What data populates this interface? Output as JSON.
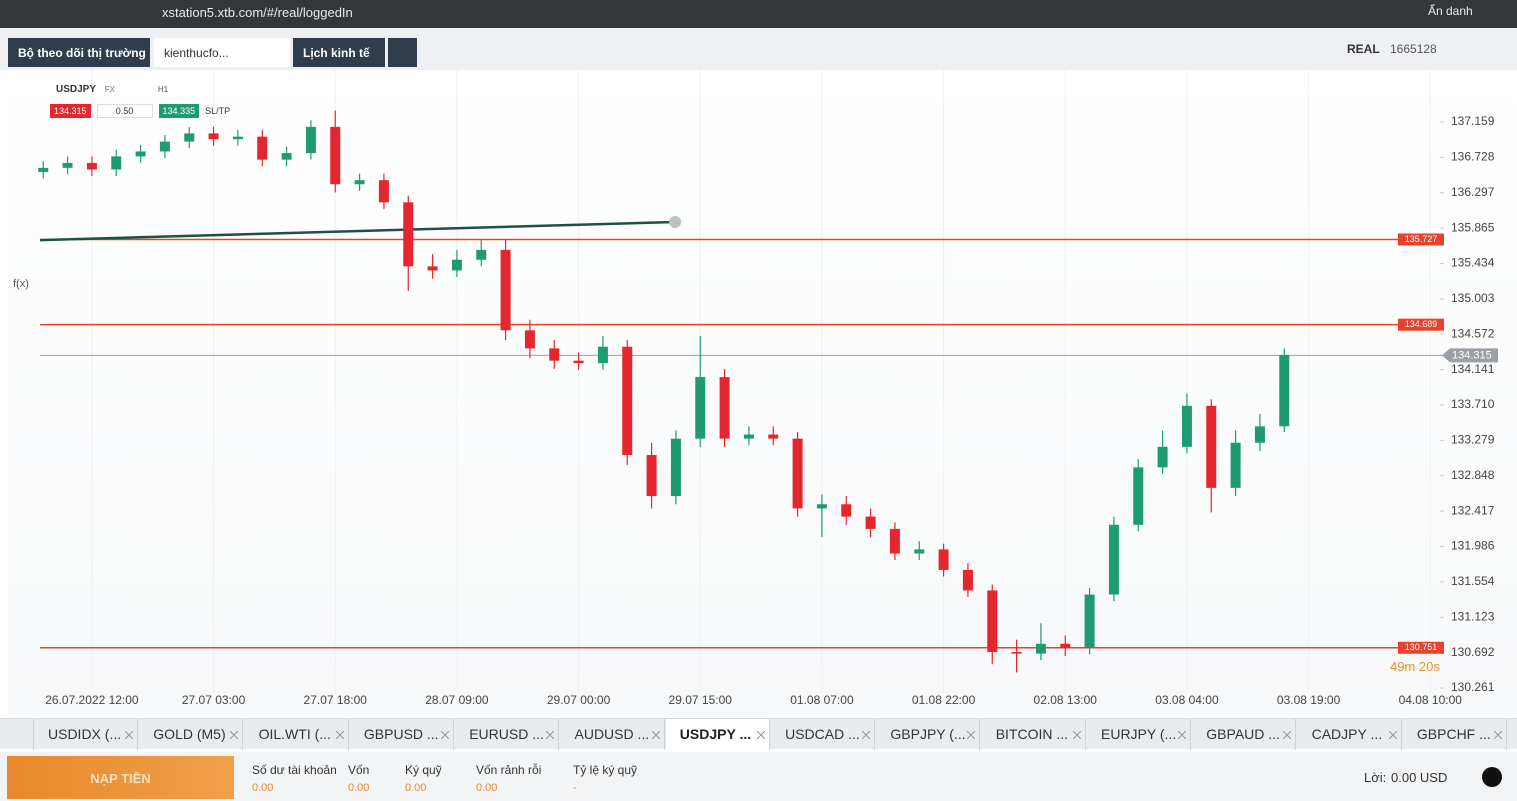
{
  "browser": {
    "url": "xstation5.xtb.com/#/real/loggedIn",
    "profile": "Ẩn danh"
  },
  "top_tabs": [
    "Bộ theo dõi thị trường",
    "kienthucfo...",
    "Lịch kinh tế"
  ],
  "account": {
    "mode": "REAL",
    "number": "1665128"
  },
  "instrument": {
    "symbol": "USDJPY",
    "kind": "FX",
    "interval": "H1",
    "sell": "134.315",
    "spread": "0.50",
    "buy": "134.335",
    "sltp": "SL/TP"
  },
  "toolbar": {
    "fx": "f(x)"
  },
  "chart_data": {
    "type": "candlestick",
    "xlim": [
      -6.4,
      166.2
    ],
    "xticks": [
      {
        "value": 0,
        "label": "26.07.2022 12:00"
      },
      {
        "value": 15,
        "label": "27.07 03:00"
      },
      {
        "value": 30,
        "label": "27.07 18:00"
      },
      {
        "value": 45,
        "label": "28.07 09:00"
      },
      {
        "value": 60,
        "label": "29.07 00:00"
      },
      {
        "value": 75,
        "label": "29.07 15:00"
      },
      {
        "value": 90,
        "label": "01.08 07:00"
      },
      {
        "value": 105,
        "label": "01.08 22:00"
      },
      {
        "value": 120,
        "label": "02.08 13:00"
      },
      {
        "value": 135,
        "label": "03.08 04:00"
      },
      {
        "value": 150,
        "label": "03.08 19:00"
      },
      {
        "value": 165,
        "label": "04.08 10:00"
      }
    ],
    "ylim": [
      130.2,
      137.7
    ],
    "yticks": [
      137.159,
      136.728,
      136.297,
      135.865,
      135.434,
      135.003,
      134.572,
      134.141,
      {
        "value": 133.71,
        "label": "133.710"
      },
      133.279,
      132.848,
      132.417,
      131.986,
      131.554,
      131.123,
      130.692,
      130.261
    ],
    "grid": "x",
    "up_color": "#1e9b73",
    "down_color": "#e4262f",
    "x": [
      -6,
      -3,
      0,
      3,
      6,
      9,
      12,
      15,
      18,
      21,
      24,
      27,
      30,
      33,
      36,
      39,
      42,
      45,
      48,
      51,
      54,
      57,
      60,
      63,
      66,
      69,
      72,
      75,
      78,
      81,
      84,
      87,
      90,
      93,
      96,
      99,
      102,
      105,
      108,
      111,
      114,
      117,
      120,
      123,
      126,
      129,
      132,
      135,
      138,
      141,
      144,
      147
    ],
    "open": [
      136.55,
      136.6,
      136.66,
      136.58,
      136.74,
      136.8,
      136.92,
      137.02,
      136.95,
      136.98,
      136.7,
      136.78,
      137.1,
      136.4,
      136.45,
      136.18,
      135.4,
      135.35,
      135.48,
      135.6,
      134.62,
      134.4,
      134.25,
      134.22,
      134.42,
      133.1,
      132.6,
      133.3,
      134.05,
      133.3,
      133.35,
      133.3,
      132.45,
      132.5,
      132.35,
      132.2,
      131.9,
      131.95,
      131.7,
      131.45,
      130.7,
      130.68,
      130.8,
      130.75,
      131.4,
      132.25,
      132.95,
      133.2,
      133.7,
      132.7,
      133.25,
      133.45
    ],
    "high": [
      136.68,
      136.74,
      136.74,
      136.82,
      136.88,
      137.0,
      137.1,
      137.1,
      137.06,
      137.06,
      136.86,
      137.18,
      137.3,
      136.53,
      136.53,
      136.26,
      135.55,
      135.6,
      135.72,
      135.72,
      134.75,
      134.5,
      134.35,
      134.55,
      134.5,
      133.25,
      133.4,
      134.55,
      134.15,
      133.45,
      133.45,
      133.38,
      132.62,
      132.6,
      132.45,
      132.28,
      132.05,
      132.02,
      131.78,
      131.52,
      130.85,
      131.05,
      130.9,
      131.48,
      132.35,
      133.05,
      133.4,
      133.85,
      133.78,
      133.4,
      133.6,
      134.4
    ],
    "low": [
      136.47,
      136.52,
      136.5,
      136.5,
      136.66,
      136.72,
      136.84,
      136.87,
      136.87,
      136.62,
      136.62,
      136.7,
      136.3,
      136.32,
      136.1,
      135.1,
      135.25,
      135.27,
      135.4,
      134.5,
      134.28,
      134.15,
      134.14,
      134.14,
      132.98,
      132.45,
      132.5,
      133.2,
      133.2,
      133.22,
      133.22,
      132.35,
      132.1,
      132.25,
      132.1,
      131.82,
      131.82,
      131.62,
      131.37,
      130.55,
      130.45,
      130.6,
      130.65,
      130.67,
      131.32,
      132.17,
      132.87,
      133.12,
      132.4,
      132.6,
      133.15,
      133.38
    ],
    "close": [
      136.6,
      136.66,
      136.58,
      136.74,
      136.8,
      136.92,
      137.02,
      136.95,
      136.98,
      136.7,
      136.78,
      137.1,
      136.4,
      136.45,
      136.18,
      135.4,
      135.35,
      135.48,
      135.6,
      134.62,
      134.4,
      134.25,
      134.22,
      134.42,
      133.1,
      132.6,
      133.3,
      134.05,
      133.3,
      133.35,
      133.3,
      132.45,
      132.5,
      132.35,
      132.2,
      131.9,
      131.95,
      131.7,
      131.45,
      130.7,
      130.68,
      130.8,
      130.75,
      131.4,
      132.25,
      132.95,
      133.2,
      133.7,
      132.7,
      133.25,
      133.45,
      134.32
    ],
    "levels": [
      {
        "value": 135.727,
        "color": "#e8412c"
      },
      {
        "value": 134.689,
        "color": "#e8412c"
      },
      {
        "value": 130.751,
        "color": "#e8412c"
      }
    ],
    "last": {
      "value": 134.315,
      "color": "#9aa0a6"
    },
    "trendline": {
      "x": [
        -6.4,
        71.9
      ],
      "y": [
        135.72,
        135.94
      ],
      "color": "#1f4f45"
    },
    "timer": "49m 20s"
  },
  "bottom_tabs": [
    "USDIDX (...",
    "GOLD (M5)",
    "OIL.WTI (...",
    "GBPUSD ...",
    "EURUSD ...",
    "AUDUSD ...",
    "USDJPY ...",
    "USDCAD ...",
    "GBPJPY (...",
    "BITCOIN ...",
    "EURJPY (...",
    "GBPAUD ...",
    "CADJPY ...",
    "GBPCHF ..."
  ],
  "active_tab": 6,
  "footer": {
    "deposit": "NẠP TIỀN",
    "fields": [
      {
        "label": "Số dư tài khoản",
        "value": "0.00"
      },
      {
        "label": "Vốn",
        "value": "0.00"
      },
      {
        "label": "Ký quỹ",
        "value": "0.00"
      },
      {
        "label": "Vốn rảnh rỗi",
        "value": "0.00"
      },
      {
        "label": "Tỷ lệ ký quỹ",
        "value": "-"
      }
    ],
    "profit_label": "Lời:",
    "profit_value": "0.00 USD"
  }
}
